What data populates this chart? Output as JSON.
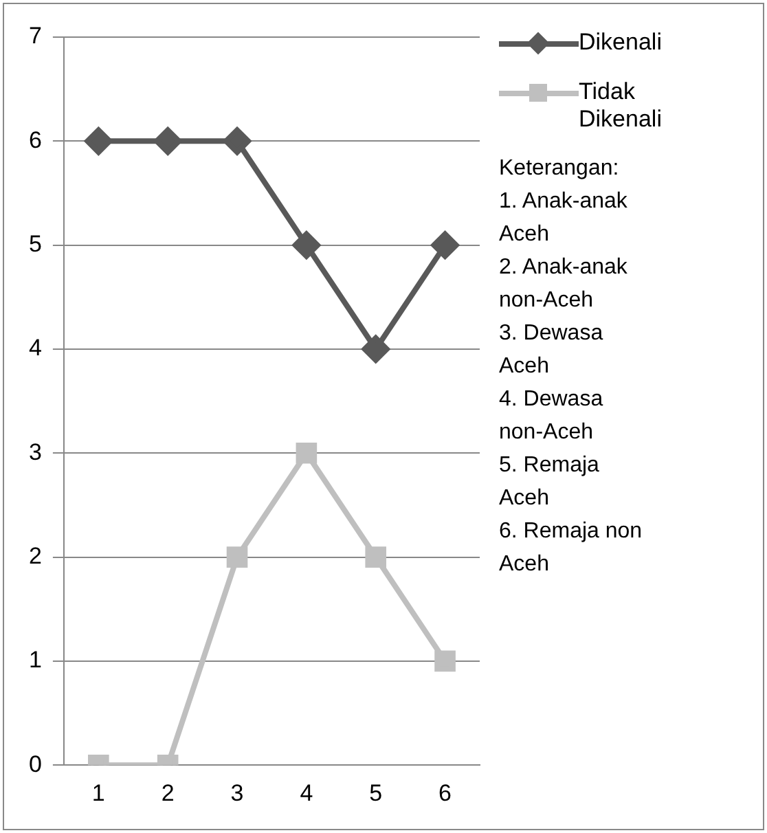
{
  "chart_data": {
    "type": "line",
    "categories": [
      "1",
      "2",
      "3",
      "4",
      "5",
      "6"
    ],
    "series": [
      {
        "name": "Dikenali",
        "color": "#595959",
        "marker": "diamond",
        "values": [
          6,
          6,
          6,
          5,
          4,
          5
        ]
      },
      {
        "name": "Tidak Dikenali",
        "color": "#bfbfbf",
        "marker": "square",
        "values": [
          0,
          0,
          2,
          3,
          2,
          1
        ]
      }
    ],
    "ylim": [
      0,
      7
    ],
    "yticks": [
      0,
      1,
      2,
      3,
      4,
      5,
      6,
      7
    ],
    "grid": "y",
    "legend": "right",
    "line_style": "solid",
    "annotations": [
      "Keterangan:",
      "1. Anak-anak Aceh",
      "2. Anak-anak non-Aceh",
      "3. Dewasa Aceh",
      "4. Dewasa non-Aceh",
      "5. Remaja Aceh",
      "6. Remaja non Aceh"
    ]
  }
}
